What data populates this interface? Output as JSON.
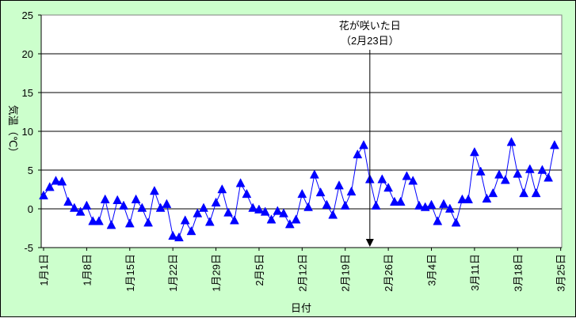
{
  "chart_data": {
    "type": "line",
    "title": "",
    "xlabel": "日付",
    "ylabel": "気温（℃）",
    "ylim": [
      -5,
      25
    ],
    "yticks": [
      "-5",
      "0",
      "5",
      "10",
      "15",
      "20",
      "25"
    ],
    "grid": true,
    "legend": "none",
    "x_start": "1月1日",
    "x_labels": [
      {
        "day": 0,
        "label": "1月1日"
      },
      {
        "day": 7,
        "label": "1月8日"
      },
      {
        "day": 14,
        "label": "1月15日"
      },
      {
        "day": 21,
        "label": "1月22日"
      },
      {
        "day": 28,
        "label": "1月29日"
      },
      {
        "day": 35,
        "label": "2月5日"
      },
      {
        "day": 42,
        "label": "2月12日"
      },
      {
        "day": 49,
        "label": "2月19日"
      },
      {
        "day": 56,
        "label": "2月26日"
      },
      {
        "day": 63,
        "label": "3月4日"
      },
      {
        "day": 70,
        "label": "3月11日"
      },
      {
        "day": 77,
        "label": "3月18日"
      },
      {
        "day": 84,
        "label": "3月25日"
      }
    ],
    "series": [
      {
        "name": "",
        "color": "#0000ff",
        "values": [
          1.7,
          2.8,
          3.6,
          3.5,
          0.9,
          0.1,
          -0.4,
          0.4,
          -1.6,
          -1.6,
          1.2,
          -2.1,
          1.1,
          0.4,
          -1.9,
          1.2,
          0.1,
          -1.8,
          2.3,
          0.1,
          0.6,
          -3.5,
          -3.7,
          -1.5,
          -2.9,
          -0.6,
          0.1,
          -1.7,
          0.8,
          2.5,
          -0.5,
          -1.5,
          3.3,
          1.9,
          0.1,
          -0.1,
          -0.4,
          -1.4,
          -0.3,
          -0.6,
          -2.0,
          -1.4,
          1.9,
          0.2,
          4.4,
          2.1,
          0.5,
          -0.8,
          3.0,
          0.4,
          2.2,
          7.0,
          8.2,
          3.8,
          0.4,
          3.8,
          2.7,
          0.9,
          0.9,
          4.2,
          3.6,
          0.4,
          0.2,
          0.5,
          -1.6,
          0.6,
          0.0,
          -1.8,
          1.2,
          1.2,
          7.3,
          4.8,
          1.3,
          2.0,
          4.4,
          3.7,
          8.6,
          4.5,
          2.0,
          5.1,
          2.0,
          5.0,
          4.0,
          8.2
        ]
      }
    ],
    "annotation": {
      "line1": "花が咲いた日",
      "line2": "（2月23日）",
      "day": 53
    }
  }
}
